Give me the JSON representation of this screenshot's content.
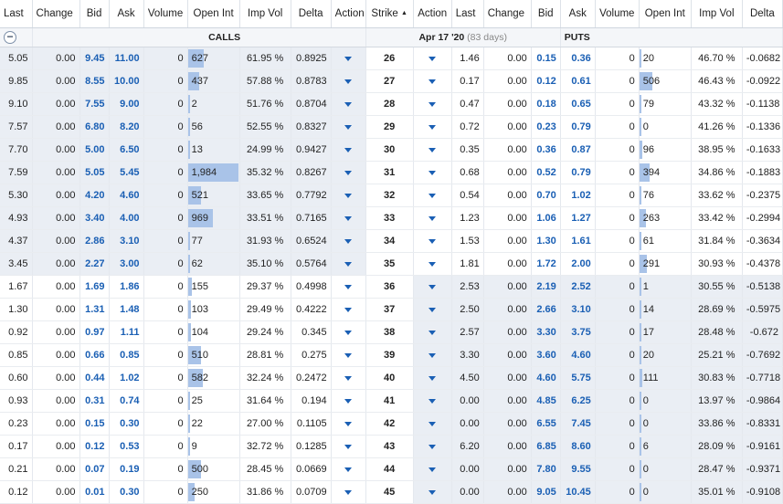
{
  "headers": {
    "calls": [
      "Last",
      "Change",
      "Bid",
      "Ask",
      "Volume",
      "Open Int",
      "Imp Vol",
      "Delta",
      "Action"
    ],
    "strike": "Strike",
    "strike_sort": "▲",
    "puts": [
      "Action",
      "Last",
      "Change",
      "Bid",
      "Ask",
      "Volume",
      "Open Int",
      "Imp Vol",
      "Delta"
    ]
  },
  "section": {
    "calls_label": "CALLS",
    "expiry": "Apr 17 '20",
    "days": "(83 days)",
    "puts_label": "PUTS",
    "collapse": "−"
  },
  "colors": {
    "bid_ask": "#1a5fb4",
    "oi_bar": "#a9c3e8",
    "itm_shade": "#eaeef4"
  },
  "rows": [
    {
      "strike": "26",
      "c": [
        "5.05",
        "0.00",
        "9.45",
        "11.00",
        "0",
        "627",
        "61.95 %",
        "0.8925"
      ],
      "c_oi": 0.31,
      "p": [
        "1.46",
        "0.00",
        "0.15",
        "0.36",
        "0",
        "20",
        "46.70 %",
        "-0.0682"
      ],
      "p_oi": 0.01
    },
    {
      "strike": "27",
      "c": [
        "9.85",
        "0.00",
        "8.55",
        "10.00",
        "0",
        "437",
        "57.88 %",
        "0.8783"
      ],
      "c_oi": 0.22,
      "p": [
        "0.17",
        "0.00",
        "0.12",
        "0.61",
        "0",
        "506",
        "46.43 %",
        "-0.0922"
      ],
      "p_oi": 0.26
    },
    {
      "strike": "28",
      "c": [
        "9.10",
        "0.00",
        "7.55",
        "9.00",
        "0",
        "2",
        "51.76 %",
        "0.8704"
      ],
      "c_oi": 0,
      "p": [
        "0.47",
        "0.00",
        "0.18",
        "0.65",
        "0",
        "79",
        "43.32 %",
        "-0.1138"
      ],
      "p_oi": 0.04
    },
    {
      "strike": "29",
      "c": [
        "7.57",
        "0.00",
        "6.80",
        "8.20",
        "0",
        "56",
        "52.55 %",
        "0.8327"
      ],
      "c_oi": 0.03,
      "p": [
        "0.72",
        "0.00",
        "0.23",
        "0.79",
        "0",
        "0",
        "41.26 %",
        "-0.1336"
      ],
      "p_oi": 0
    },
    {
      "strike": "30",
      "c": [
        "7.70",
        "0.00",
        "5.00",
        "6.50",
        "0",
        "13",
        "24.99 %",
        "0.9427"
      ],
      "c_oi": 0.01,
      "p": [
        "0.35",
        "0.00",
        "0.36",
        "0.87",
        "0",
        "96",
        "38.95 %",
        "-0.1633"
      ],
      "p_oi": 0.05
    },
    {
      "strike": "31",
      "c": [
        "7.59",
        "0.00",
        "5.05",
        "5.45",
        "0",
        "1,984",
        "35.32 %",
        "0.8267"
      ],
      "c_oi": 1.0,
      "p": [
        "0.68",
        "0.00",
        "0.52",
        "0.79",
        "0",
        "394",
        "34.86 %",
        "-0.1883"
      ],
      "p_oi": 0.2
    },
    {
      "strike": "32",
      "c": [
        "5.30",
        "0.00",
        "4.20",
        "4.60",
        "0",
        "521",
        "33.65 %",
        "0.7792"
      ],
      "c_oi": 0.26,
      "p": [
        "0.54",
        "0.00",
        "0.70",
        "1.02",
        "0",
        "76",
        "33.62 %",
        "-0.2375"
      ],
      "p_oi": 0.04
    },
    {
      "strike": "33",
      "c": [
        "4.93",
        "0.00",
        "3.40",
        "4.00",
        "0",
        "969",
        "33.51 %",
        "0.7165",
        "x"
      ],
      "c_oi": 0.49,
      "p": [
        "1.23",
        "0.00",
        "1.06",
        "1.27",
        "0",
        "263",
        "33.42 %",
        "-0.2994"
      ],
      "p_oi": 0.13
    },
    {
      "strike": "34",
      "c": [
        "4.37",
        "0.00",
        "2.86",
        "3.10",
        "0",
        "77",
        "31.93 %",
        "0.6524"
      ],
      "c_oi": 0.04,
      "p": [
        "1.53",
        "0.00",
        "1.30",
        "1.61",
        "0",
        "61",
        "31.84 %",
        "-0.3634"
      ],
      "p_oi": 0.03
    },
    {
      "strike": "35",
      "c": [
        "3.45",
        "0.00",
        "2.27",
        "3.00",
        "0",
        "62",
        "35.10 %",
        "0.5764"
      ],
      "c_oi": 0.03,
      "p": [
        "1.81",
        "0.00",
        "1.72",
        "2.00",
        "0",
        "291",
        "30.93 %",
        "-0.4378"
      ],
      "p_oi": 0.15
    },
    {
      "strike": "36",
      "c": [
        "1.67",
        "0.00",
        "1.69",
        "1.86",
        "0",
        "155",
        "29.37 %",
        "0.4998"
      ],
      "c_oi": 0.08,
      "p": [
        "2.53",
        "0.00",
        "2.19",
        "2.52",
        "0",
        "1",
        "30.55 %",
        "-0.5138"
      ],
      "p_oi": 0
    },
    {
      "strike": "37",
      "c": [
        "1.30",
        "0.00",
        "1.31",
        "1.48",
        "0",
        "103",
        "29.49 %",
        "0.4222"
      ],
      "c_oi": 0.05,
      "p": [
        "2.50",
        "0.00",
        "2.66",
        "3.10",
        "0",
        "14",
        "28.69 %",
        "-0.5975"
      ],
      "p_oi": 0.01
    },
    {
      "strike": "38",
      "c": [
        "0.92",
        "0.00",
        "0.97",
        "1.11",
        "0",
        "104",
        "29.24 %",
        "0.345"
      ],
      "c_oi": 0.05,
      "p": [
        "2.57",
        "0.00",
        "3.30",
        "3.75",
        "0",
        "17",
        "28.48 %",
        "-0.672"
      ],
      "p_oi": 0.01
    },
    {
      "strike": "39",
      "c": [
        "0.85",
        "0.00",
        "0.66",
        "0.85",
        "0",
        "510",
        "28.81 %",
        "0.275"
      ],
      "c_oi": 0.26,
      "p": [
        "3.30",
        "0.00",
        "3.60",
        "4.60",
        "0",
        "20",
        "25.21 %",
        "-0.7692"
      ],
      "p_oi": 0.01
    },
    {
      "strike": "40",
      "c": [
        "0.60",
        "0.00",
        "0.44",
        "1.02",
        "0",
        "582",
        "32.24 %",
        "0.2472"
      ],
      "c_oi": 0.29,
      "p": [
        "4.50",
        "0.00",
        "4.60",
        "5.75",
        "0",
        "111",
        "30.83 %",
        "-0.7718"
      ],
      "p_oi": 0.06
    },
    {
      "strike": "41",
      "c": [
        "0.93",
        "0.00",
        "0.31",
        "0.74",
        "0",
        "25",
        "31.64 %",
        "0.194"
      ],
      "c_oi": 0.01,
      "p": [
        "0.00",
        "0.00",
        "4.85",
        "6.25",
        "0",
        "0",
        "13.97 %",
        "-0.9864"
      ],
      "p_oi": 0
    },
    {
      "strike": "42",
      "c": [
        "0.23",
        "0.00",
        "0.15",
        "0.30",
        "0",
        "22",
        "27.00 %",
        "0.1105"
      ],
      "c_oi": 0.01,
      "p": [
        "0.00",
        "0.00",
        "6.55",
        "7.45",
        "0",
        "0",
        "33.86 %",
        "-0.8331"
      ],
      "p_oi": 0
    },
    {
      "strike": "43",
      "c": [
        "0.17",
        "0.00",
        "0.12",
        "0.53",
        "0",
        "9",
        "32.72 %",
        "0.1285"
      ],
      "c_oi": 0,
      "p": [
        "6.20",
        "0.00",
        "6.85",
        "8.60",
        "0",
        "6",
        "28.09 %",
        "-0.9161"
      ],
      "p_oi": 0
    },
    {
      "strike": "44",
      "c": [
        "0.21",
        "0.00",
        "0.07",
        "0.19",
        "0",
        "500",
        "28.45 %",
        "0.0669"
      ],
      "c_oi": 0.25,
      "p": [
        "0.00",
        "0.00",
        "7.80",
        "9.55",
        "0",
        "0",
        "28.47 %",
        "-0.9371"
      ],
      "p_oi": 0
    },
    {
      "strike": "45",
      "c": [
        "0.12",
        "0.00",
        "0.01",
        "0.30",
        "0",
        "250",
        "31.86 %",
        "0.0709"
      ],
      "c_oi": 0.13,
      "p": [
        "0.00",
        "0.00",
        "9.05",
        "10.45",
        "0",
        "0",
        "35.01 %",
        "-0.9108"
      ],
      "p_oi": 0
    }
  ]
}
